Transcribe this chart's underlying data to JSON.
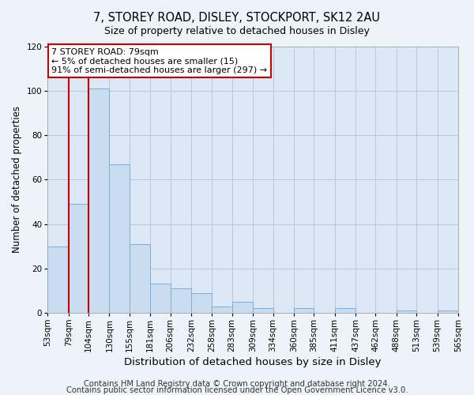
{
  "title": "7, STOREY ROAD, DISLEY, STOCKPORT, SK12 2AU",
  "subtitle": "Size of property relative to detached houses in Disley",
  "xlabel": "Distribution of detached houses by size in Disley",
  "ylabel": "Number of detached properties",
  "bar_edges": [
    53,
    79,
    104,
    130,
    155,
    181,
    206,
    232,
    258,
    283,
    309,
    334,
    360,
    385,
    411,
    437,
    462,
    488,
    513,
    539,
    565
  ],
  "bar_heights": [
    30,
    49,
    101,
    67,
    31,
    13,
    11,
    9,
    3,
    5,
    2,
    0,
    2,
    0,
    2,
    0,
    0,
    1,
    0,
    1
  ],
  "bar_color": "#c9dcf0",
  "bar_edge_color": "#7bafd4",
  "highlight_bar_index": 1,
  "highlight_edge_color": "#cc0000",
  "ylim": [
    0,
    120
  ],
  "yticks": [
    0,
    20,
    40,
    60,
    80,
    100,
    120
  ],
  "annotation_box_text": "7 STOREY ROAD: 79sqm\n← 5% of detached houses are smaller (15)\n91% of semi-detached houses are larger (297) →",
  "footnote1": "Contains HM Land Registry data © Crown copyright and database right 2024.",
  "footnote2": "Contains public sector information licensed under the Open Government Licence v3.0.",
  "background_color": "#eef2f9",
  "plot_bg_color": "#dce8f5",
  "grid_color": "#b8c8dc",
  "title_fontsize": 10.5,
  "xlabel_fontsize": 9.5,
  "ylabel_fontsize": 8.5,
  "tick_fontsize": 7.5,
  "footnote_fontsize": 7.2
}
